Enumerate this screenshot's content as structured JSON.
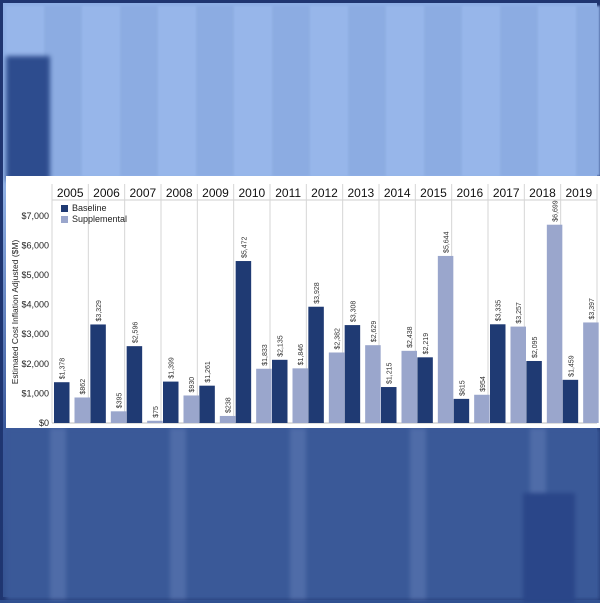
{
  "chart_data": {
    "type": "bar",
    "ylabel": "Estimated Cost Inflation Adjusted ($M)",
    "ylim": [
      0,
      7500
    ],
    "y_ticks": [
      0,
      1000,
      2000,
      3000,
      4000,
      5000,
      6000,
      7000
    ],
    "y_tick_labels": [
      "$0",
      "$1,000",
      "$2,000",
      "$3,000",
      "$4,000",
      "$5,000",
      "$6,000",
      "$7,000"
    ],
    "legend_placement": "top-left",
    "grid": "vertical separators between years",
    "categories": [
      "2005",
      "2006",
      "2007",
      "2008",
      "2009",
      "2010",
      "2011",
      "2012",
      "2013",
      "2014",
      "2015",
      "2016",
      "2017",
      "2018",
      "2019"
    ],
    "series": [
      {
        "name": "Baseline",
        "color": "#1f3a73",
        "values": [
          1378,
          3329,
          2596,
          1399,
          1261,
          5472,
          2135,
          3928,
          3308,
          1215,
          2219,
          815,
          3335,
          2095,
          1459
        ],
        "labels": [
          "$1,378",
          "$3,329",
          "$2,596",
          "$1,399",
          "$1,261",
          "$5,472",
          "$2,135",
          "$3,928",
          "$3,308",
          "$1,215",
          "$2,219",
          "$815",
          "$3,335",
          "$2,095",
          "$1,459"
        ]
      },
      {
        "name": "Supplemental",
        "color": "#9aa6cc",
        "values": [
          862,
          395,
          75,
          930,
          238,
          1833,
          1846,
          2382,
          2629,
          2438,
          5644,
          954,
          3257,
          6699,
          3397
        ],
        "labels": [
          "$862",
          "$395",
          "$75",
          "$930",
          "$238",
          "$1,833",
          "$1,846",
          "$2,382",
          "$2,629",
          "$2,438",
          "$5,644",
          "$954",
          "$3,257",
          "$6,699",
          "$3,397"
        ]
      }
    ]
  }
}
